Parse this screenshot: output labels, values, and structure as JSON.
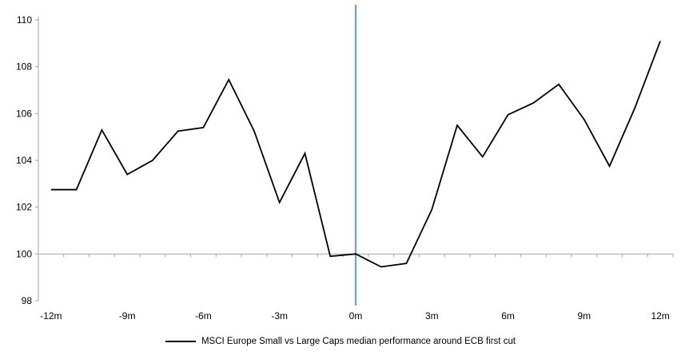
{
  "chart_data": {
    "type": "line",
    "title": "",
    "x": [
      -12,
      -11,
      -10,
      -9,
      -8,
      -7,
      -6,
      -5,
      -4,
      -3,
      -2,
      -1,
      0,
      1,
      2,
      3,
      4,
      5,
      6,
      7,
      8,
      9,
      10,
      11,
      12
    ],
    "series": [
      {
        "name": "MSCI Europe Small vs Large Caps median performance around ECB first cut",
        "color": "#000000",
        "values": [
          102.75,
          102.75,
          105.3,
          103.4,
          104.0,
          105.25,
          105.4,
          107.45,
          105.25,
          102.2,
          104.3,
          99.9,
          100.0,
          99.45,
          99.6,
          101.9,
          105.5,
          104.15,
          105.95,
          106.45,
          107.25,
          105.75,
          103.75,
          106.25,
          109.1
        ]
      }
    ],
    "x_tick_values": [
      -12,
      -9,
      -6,
      -3,
      0,
      3,
      6,
      9,
      12
    ],
    "x_tick_labels": [
      "-12m",
      "-9m",
      "-6m",
      "-3m",
      "0m",
      "3m",
      "6m",
      "9m",
      "12m"
    ],
    "y_ticks": [
      98,
      100,
      102,
      104,
      106,
      108,
      110
    ],
    "ylim": [
      98,
      110
    ],
    "baseline_value": 100,
    "event_line_x": 0,
    "grid": "baseline-only",
    "legend_position": "bottom-center",
    "colors": {
      "series_line": "#000000",
      "event_line": "#74A1D5",
      "axis": "#A6A6A6",
      "tick_label": "#000000"
    }
  },
  "legend": {
    "label": "MSCI Europe Small vs Large Caps median performance around ECB first cut"
  }
}
